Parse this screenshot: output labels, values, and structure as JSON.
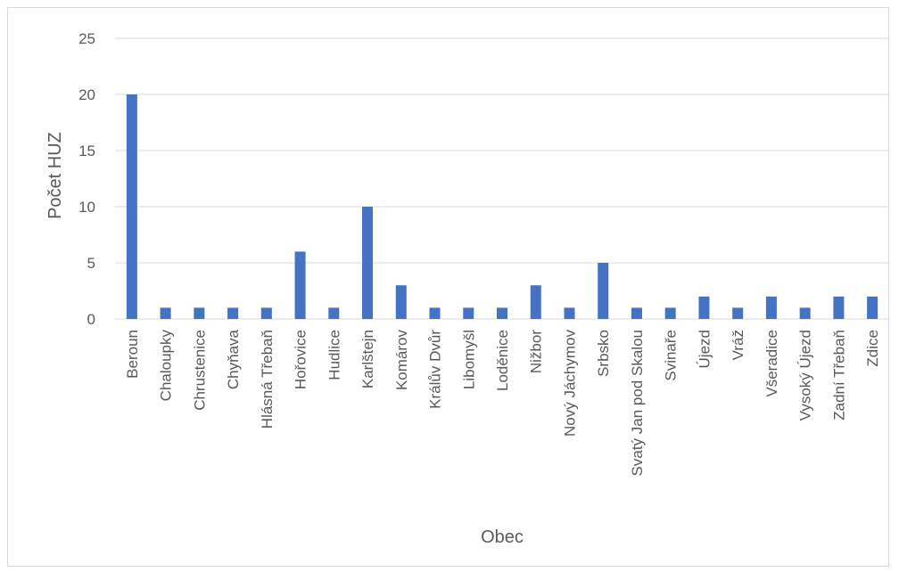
{
  "chart_data": {
    "type": "bar",
    "xlabel": "Obec",
    "ylabel": "Počet HUZ",
    "categories": [
      "Beroun",
      "Chaloupky",
      "Chrustenice",
      "Chyňava",
      "Hlásná Třebaň",
      "Hořovice",
      "Hudlice",
      "Karlštejn",
      "Komárov",
      "Králův Dvůr",
      "Libomyšl",
      "Loděnice",
      "Nižbor",
      "Nový Jáchymov",
      "Srbsko",
      "Svatý Jan pod Skalou",
      "Svinaře",
      "Újezd",
      "Vráž",
      "Všeradice",
      "Vysoký Újezd",
      "Zadní Třebaň",
      "Zdice"
    ],
    "values": [
      20,
      1,
      1,
      1,
      1,
      6,
      1,
      10,
      3,
      1,
      1,
      1,
      3,
      1,
      5,
      1,
      1,
      2,
      1,
      2,
      1,
      2,
      2
    ],
    "ylim": [
      0,
      25
    ],
    "yticks": [
      "0",
      "5",
      "10",
      "15",
      "20",
      "25"
    ],
    "grid": true,
    "color": "#4472c4",
    "legend": "none"
  }
}
